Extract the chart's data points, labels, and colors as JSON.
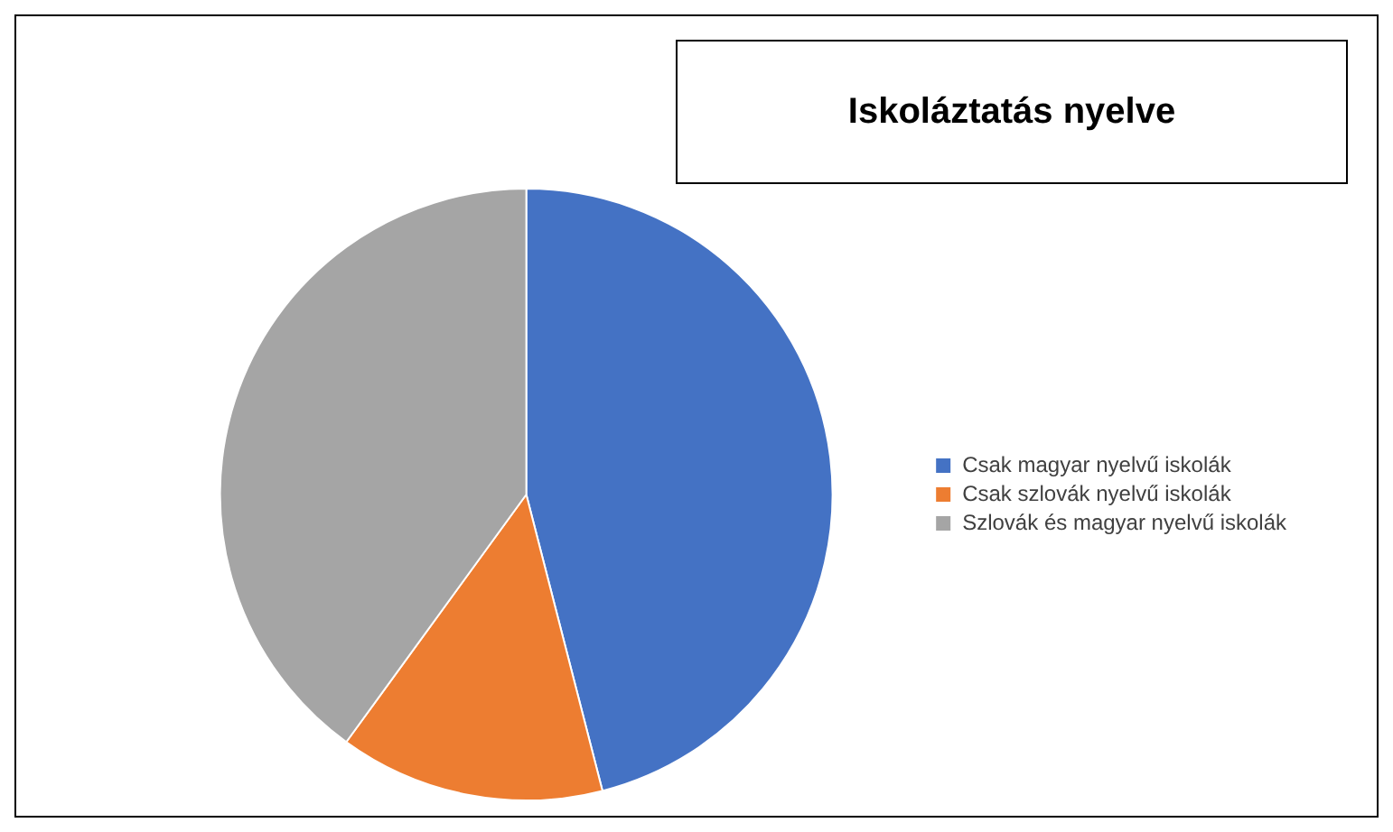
{
  "chart_data": {
    "type": "pie",
    "title": "Iskoláztatás nyelve",
    "categories": [
      "Csak magyar nyelvű iskolák",
      "Csak szlovák nyelvű iskolák",
      "Szlovák és magyar nyelvű iskolák"
    ],
    "values": [
      46,
      14,
      40
    ],
    "colors": [
      "#4472c4",
      "#ed7d31",
      "#a5a5a5"
    ],
    "legend": "right"
  }
}
